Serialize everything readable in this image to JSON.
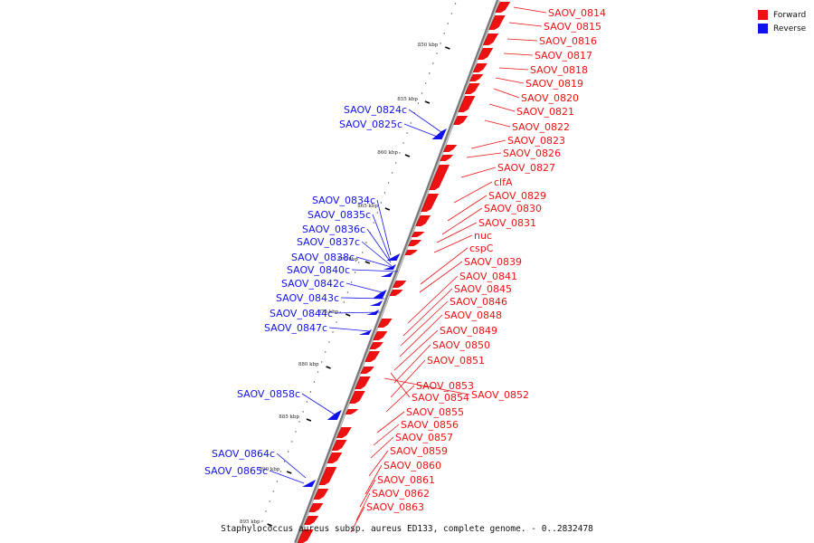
{
  "legend": [
    {
      "label": "Forward",
      "color": "#ee1111"
    },
    {
      "label": "Reverse",
      "color": "#1111ee"
    }
  ],
  "colors": {
    "forward": "#ee1111",
    "reverse": "#1111ee",
    "axis": "#888888"
  },
  "caption": "Staphylococcus aureus subsp. aureus ED133, complete genome. - 0..2832478",
  "ticks": [
    {
      "label": "850 kbp"
    },
    {
      "label": "855 kbp"
    },
    {
      "label": "860 kbp"
    },
    {
      "label": "865 kbp"
    },
    {
      "label": "870 kbp"
    },
    {
      "label": "875 kbp"
    },
    {
      "label": "880 kbp"
    },
    {
      "label": "885 kbp"
    },
    {
      "label": "890 kbp"
    },
    {
      "label": "895 kbp"
    }
  ],
  "forward_genes": [
    "SAOV_0814",
    "SAOV_0815",
    "SAOV_0816",
    "SAOV_0817",
    "SAOV_0818",
    "SAOV_0819",
    "SAOV_0820",
    "SAOV_0821",
    "SAOV_0822",
    "SAOV_0823",
    "SAOV_0826",
    "SAOV_0827",
    "clfA",
    "SAOV_0829",
    "SAOV_0830",
    "SAOV_0831",
    "nuc",
    "cspC",
    "SAOV_0839",
    "SAOV_0841",
    "SAOV_0845",
    "SAOV_0846",
    "SAOV_0848",
    "SAOV_0849",
    "SAOV_0850",
    "SAOV_0851",
    "SAOV_0853",
    "SAOV_0854",
    "SAOV_0852",
    "SAOV_0855",
    "SAOV_0856",
    "SAOV_0857",
    "SAOV_0859",
    "SAOV_0860",
    "SAOV_0861",
    "SAOV_0862",
    "SAOV_0863"
  ],
  "reverse_genes": [
    "SAOV_0824c",
    "SAOV_0825c",
    "SAOV_0834c",
    "SAOV_0835c",
    "SAOV_0836c",
    "SAOV_0837c",
    "SAOV_0838c",
    "SAOV_0840c",
    "SAOV_0842c",
    "SAOV_0843c",
    "SAOV_0844c",
    "SAOV_0847c",
    "SAOV_0858c",
    "SAOV_0864c",
    "SAOV_0865c"
  ]
}
